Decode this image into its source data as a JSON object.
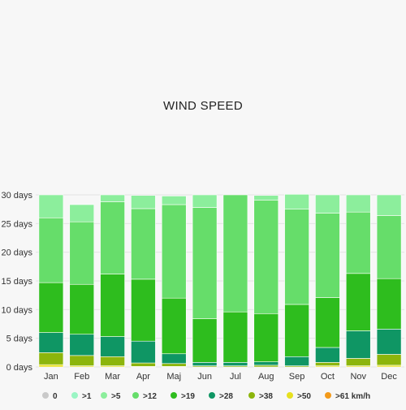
{
  "chart_data": {
    "type": "bar",
    "stacked": true,
    "title": "WIND SPEED",
    "ylim": [
      0,
      30
    ],
    "yticks": [
      0,
      5,
      10,
      15,
      20,
      25,
      30
    ],
    "ytick_suffix": " days",
    "grid": true,
    "legend_position": "bottom",
    "categories": [
      "Jan",
      "Feb",
      "Mar",
      "Apr",
      "Maj",
      "Jun",
      "Jul",
      "Aug",
      "Sep",
      "Oct",
      "Nov",
      "Dec"
    ],
    "series": [
      {
        "name": "0",
        "color": "#c9c9c9",
        "values": [
          0,
          0,
          0,
          0,
          0,
          0,
          0,
          0,
          0,
          0,
          0,
          0
        ]
      },
      {
        "name": ">1",
        "color": "#9af5c4",
        "values": [
          0,
          0,
          0,
          0,
          0,
          0,
          0,
          0,
          0,
          0,
          0,
          0
        ]
      },
      {
        "name": ">5",
        "color": "#8cee9c",
        "values": [
          4,
          3,
          1.2,
          2.3,
          1.5,
          2.2,
          0,
          0.8,
          2.6,
          3.2,
          3,
          3.6
        ]
      },
      {
        "name": ">12",
        "color": "#66dd6a",
        "values": [
          11.3,
          10.9,
          12.6,
          12.3,
          16.3,
          19.4,
          20.4,
          19.8,
          16.6,
          14.7,
          10.7,
          11
        ]
      },
      {
        "name": ">19",
        "color": "#2ebd1e",
        "values": [
          8.7,
          8.7,
          10.9,
          10.8,
          9.7,
          7.6,
          8.8,
          8.4,
          9.1,
          8.7,
          10,
          8.8
        ]
      },
      {
        "name": ">28",
        "color": "#0f9664",
        "values": [
          3.5,
          3.7,
          3.5,
          3.8,
          1.7,
          0.6,
          0.6,
          0.6,
          1.6,
          2.6,
          4.8,
          4.4
        ]
      },
      {
        "name": ">38",
        "color": "#8cb50c",
        "values": [
          2.1,
          1.8,
          1.6,
          0.6,
          0.5,
          0.2,
          0.2,
          0.3,
          0.2,
          0.6,
          1.3,
          1.9
        ]
      },
      {
        "name": ">50",
        "color": "#e6e01e",
        "values": [
          0.4,
          0.2,
          0.2,
          0.1,
          0.1,
          0,
          0,
          0,
          0,
          0.2,
          0.2,
          0.3
        ]
      },
      {
        "name": ">61 km/h",
        "color": "#f39a1a",
        "values": [
          0,
          0,
          0,
          0,
          0,
          0,
          0,
          0,
          0,
          0,
          0,
          0
        ]
      }
    ]
  }
}
